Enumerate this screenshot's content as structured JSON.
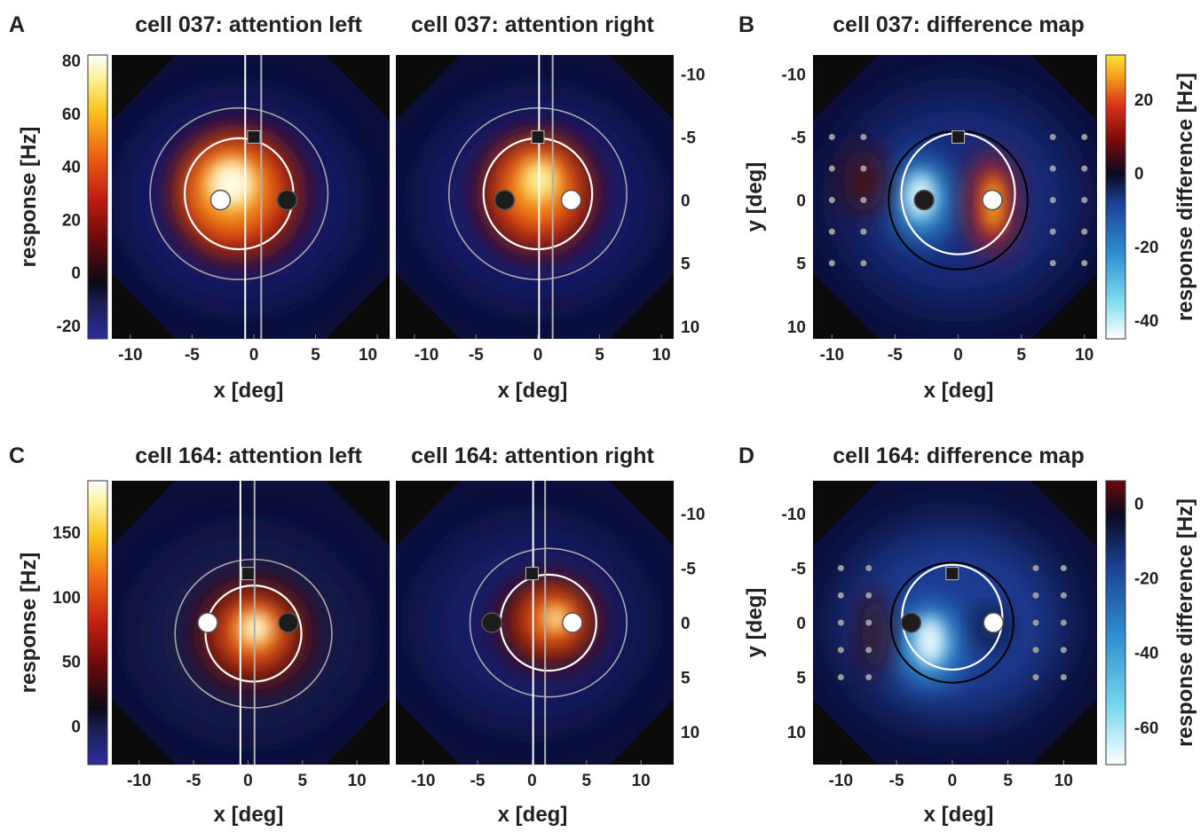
{
  "chart_data": [
    {
      "panel": "A",
      "type": "heatmap",
      "title": "cell 037: attention left",
      "xlabel": "x [deg]",
      "ylabel": "response [Hz]",
      "xticks": [
        -10,
        -5,
        0,
        5,
        10
      ],
      "xlim": [
        -11.5,
        11
      ],
      "ylim": [
        -11.5,
        11
      ],
      "colorbar": {
        "min": -25,
        "max": 82,
        "ticks": [
          80,
          60,
          40,
          20,
          0,
          -20
        ],
        "colormap": "hot"
      },
      "markers": [
        {
          "shape": "square",
          "fill": "black",
          "x": 0,
          "y": -5
        },
        {
          "shape": "circle",
          "fill": "white",
          "x": -2.7,
          "y": 0
        },
        {
          "shape": "circle",
          "fill": "black",
          "x": 2.7,
          "y": 0
        }
      ]
    },
    {
      "panel": "A",
      "type": "heatmap",
      "title": "cell 037: attention right",
      "xlabel": "x [deg]",
      "ylabel": "",
      "xticks": [
        -10,
        -5,
        0,
        5,
        10
      ],
      "yticks": [
        -10,
        -5,
        0,
        5,
        10
      ],
      "xlim": [
        -11.5,
        11
      ],
      "ylim": [
        -11.5,
        11
      ],
      "markers": [
        {
          "shape": "square",
          "fill": "black",
          "x": 0,
          "y": -5
        },
        {
          "shape": "circle",
          "fill": "black",
          "x": -2.7,
          "y": 0
        },
        {
          "shape": "circle",
          "fill": "white",
          "x": 2.7,
          "y": 0
        }
      ]
    },
    {
      "panel": "B",
      "type": "heatmap",
      "title": "cell 037: difference map",
      "xlabel": "x [deg]",
      "ylabel": "y [deg]",
      "xticks": [
        -10,
        -5,
        0,
        5,
        10
      ],
      "yticks": [
        -10,
        -5,
        0,
        5,
        10
      ],
      "xlim": [
        -11.5,
        11
      ],
      "ylim": [
        -11.5,
        11
      ],
      "colorbar": {
        "label": "response difference [Hz]",
        "min": -45,
        "max": 32,
        "ticks": [
          20,
          0,
          -20,
          -40
        ],
        "colormap": "blue-black-hot"
      },
      "markers": [
        {
          "shape": "square",
          "fill": "black",
          "x": 0,
          "y": -5
        },
        {
          "shape": "circle",
          "fill": "black",
          "x": -2.7,
          "y": 0
        },
        {
          "shape": "circle",
          "fill": "white",
          "x": 2.7,
          "y": 0
        }
      ]
    },
    {
      "panel": "C",
      "type": "heatmap",
      "title": "cell 164: attention left",
      "xlabel": "x [deg]",
      "ylabel": "response [Hz]",
      "xticks": [
        -10,
        -5,
        0,
        5,
        10
      ],
      "xlim": [
        -12.5,
        13
      ],
      "ylim": [
        -13,
        13
      ],
      "colorbar": {
        "min": -30,
        "max": 190,
        "ticks": [
          150,
          100,
          50,
          0
        ],
        "colormap": "hot"
      },
      "markers": [
        {
          "shape": "square",
          "fill": "black",
          "x": 0,
          "y": -4.5
        },
        {
          "shape": "circle",
          "fill": "white",
          "x": -3.7,
          "y": 0
        },
        {
          "shape": "circle",
          "fill": "black",
          "x": 3.7,
          "y": 0
        }
      ]
    },
    {
      "panel": "C",
      "type": "heatmap",
      "title": "cell 164: attention right",
      "xlabel": "x [deg]",
      "ylabel": "",
      "xticks": [
        -10,
        -5,
        0,
        5,
        10
      ],
      "yticks": [
        -10,
        -5,
        0,
        5,
        10
      ],
      "xlim": [
        -12.5,
        13
      ],
      "ylim": [
        -13,
        13
      ],
      "markers": [
        {
          "shape": "square",
          "fill": "black",
          "x": 0,
          "y": -4.5
        },
        {
          "shape": "circle",
          "fill": "black",
          "x": -3.7,
          "y": 0
        },
        {
          "shape": "circle",
          "fill": "white",
          "x": 3.7,
          "y": 0
        }
      ]
    },
    {
      "panel": "D",
      "type": "heatmap",
      "title": "cell 164: difference map",
      "xlabel": "x [deg]",
      "ylabel": "y [deg]",
      "xticks": [
        -10,
        -5,
        0,
        5,
        10
      ],
      "yticks": [
        -10,
        -5,
        0,
        5,
        10
      ],
      "xlim": [
        -12.5,
        13
      ],
      "ylim": [
        -13,
        13
      ],
      "colorbar": {
        "label": "response difference [Hz]",
        "min": -70,
        "max": 6,
        "ticks": [
          0,
          -20,
          -40,
          -60
        ],
        "colormap": "blue-black-hot"
      },
      "markers": [
        {
          "shape": "square",
          "fill": "black",
          "x": 0,
          "y": -4.5
        },
        {
          "shape": "circle",
          "fill": "black",
          "x": -3.7,
          "y": 0
        },
        {
          "shape": "circle",
          "fill": "white",
          "x": 3.7,
          "y": 0
        }
      ]
    }
  ],
  "panel_letters": [
    "A",
    "B",
    "C",
    "D"
  ],
  "colors": {
    "background_field": "#0a0a0a",
    "grid_dot": "#9a9a9a",
    "contour_white": "#ffffff",
    "contour_gray": "#a8a8a8"
  }
}
